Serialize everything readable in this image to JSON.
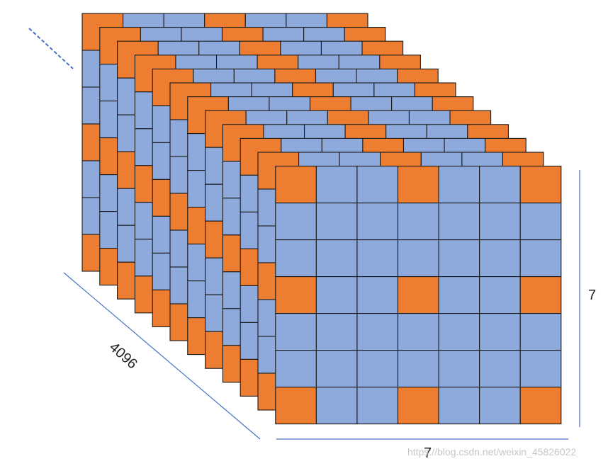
{
  "diagram": {
    "depth_label": "4096",
    "width_label": "7",
    "height_label": "7",
    "grid_size": 7,
    "orange_positions": [
      0,
      3,
      6
    ],
    "colors": {
      "cell": "#8eaadc",
      "highlight": "#ed7d31",
      "grid_line": "#1a1a1a",
      "axis_line": "#4472c4"
    }
  },
  "watermark": "https://blog.csdn.net/weixin_45826022"
}
